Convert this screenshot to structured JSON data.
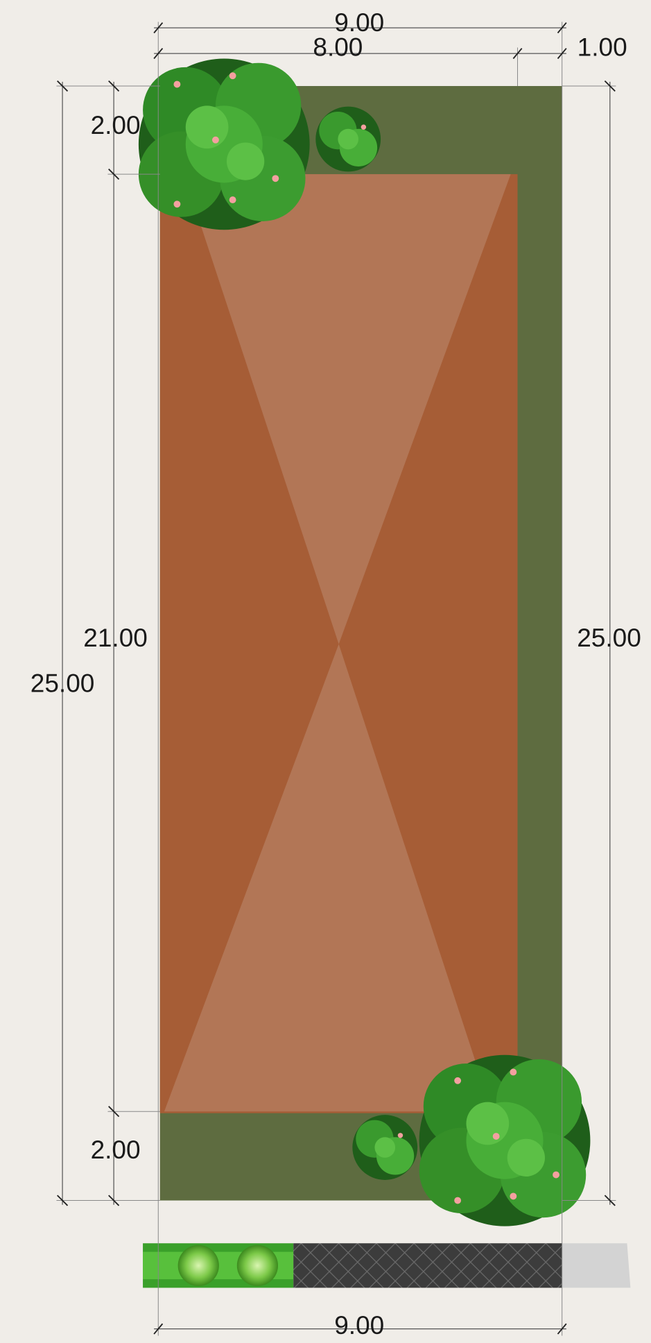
{
  "dimensions": {
    "top_total": "9.00",
    "top_left": "8.00",
    "top_right": "1.00",
    "left_top": "2.00",
    "left_middle": "21.00",
    "left_total": "25.00",
    "right_total": "25.00",
    "left_bottom": "2.00",
    "bottom_total": "9.00"
  }
}
